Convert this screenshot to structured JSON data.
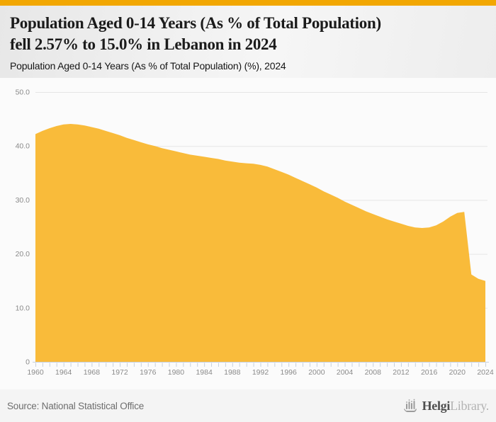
{
  "header": {
    "title_line1": "Population Aged 0-14 Years (As % of Total Population)",
    "title_line2": "fell 2.57% to 15.0% in Lebanon in 2024",
    "subtitle": "Population Aged 0-14 Years (As % of Total Population) (%), 2024"
  },
  "footer": {
    "source": "Source: National Statistical Office",
    "logo_text_bold": "Helgi",
    "logo_text_light": "Library."
  },
  "colors": {
    "top_bar": "#f2a702",
    "area_fill": "#f9bb3a",
    "chart_bg": "#fbfbfb",
    "gridline": "#e6e6e6",
    "axis_line": "#c7d0dc",
    "tick": "#c7d0dc",
    "axis_label": "#8a8a8a",
    "title_text": "#1b1b1b",
    "source_text": "#6e6e6e"
  },
  "chart_data": {
    "type": "area",
    "title": "Population Aged 0-14 Years (As % of Total Population) (%), 2024",
    "series_name": "Population Aged 0-14 Years (As % of Total Population)",
    "xlabel": "",
    "ylabel": "",
    "grid": true,
    "legend": "none",
    "ylim": [
      0,
      50
    ],
    "yticks": [
      0,
      10,
      20,
      30,
      40,
      50
    ],
    "ytick_labels": [
      "0",
      "10.0",
      "20.0",
      "30.0",
      "40.0",
      "50.0"
    ],
    "xtick_labels": [
      "1960",
      "1964",
      "1968",
      "1972",
      "1976",
      "1980",
      "1984",
      "1988",
      "1992",
      "1996",
      "2000",
      "2004",
      "2008",
      "2012",
      "2016",
      "2020",
      "2024"
    ],
    "x": [
      1960,
      1961,
      1962,
      1963,
      1964,
      1965,
      1966,
      1967,
      1968,
      1969,
      1970,
      1971,
      1972,
      1973,
      1974,
      1975,
      1976,
      1977,
      1978,
      1979,
      1980,
      1981,
      1982,
      1983,
      1984,
      1985,
      1986,
      1987,
      1988,
      1989,
      1990,
      1991,
      1992,
      1993,
      1994,
      1995,
      1996,
      1997,
      1998,
      1999,
      2000,
      2001,
      2002,
      2003,
      2004,
      2005,
      2006,
      2007,
      2008,
      2009,
      2010,
      2011,
      2012,
      2013,
      2014,
      2015,
      2016,
      2017,
      2018,
      2019,
      2020,
      2021,
      2022,
      2023,
      2024
    ],
    "values": [
      42.2,
      42.8,
      43.3,
      43.7,
      44.0,
      44.1,
      44.0,
      43.8,
      43.5,
      43.2,
      42.8,
      42.4,
      42.0,
      41.5,
      41.1,
      40.7,
      40.3,
      40.0,
      39.6,
      39.3,
      39.0,
      38.7,
      38.4,
      38.2,
      38.0,
      37.8,
      37.6,
      37.3,
      37.1,
      36.9,
      36.8,
      36.7,
      36.5,
      36.2,
      35.7,
      35.2,
      34.7,
      34.1,
      33.5,
      32.9,
      32.3,
      31.6,
      31.0,
      30.4,
      29.7,
      29.1,
      28.5,
      27.9,
      27.4,
      26.9,
      26.4,
      26.0,
      25.6,
      25.2,
      24.9,
      24.8,
      24.9,
      25.3,
      26.0,
      26.9,
      27.6,
      27.8,
      16.2,
      15.4,
      15.0
    ]
  }
}
